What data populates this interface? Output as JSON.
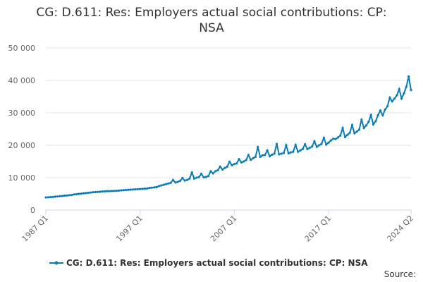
{
  "chart_data": {
    "type": "line",
    "title": "CG: D.611: Res: Employers actual social contributions: CP: NSA",
    "xlabel": "",
    "ylabel": "",
    "ylim": [
      0,
      50000
    ],
    "yticks": [
      0,
      10000,
      20000,
      30000,
      40000,
      50000
    ],
    "ytick_labels": [
      "0",
      "10 000",
      "20 000",
      "30 000",
      "40 000",
      "50 000"
    ],
    "x_range": [
      "1987 Q1",
      "2024 Q2"
    ],
    "xtick_labels": [
      "1987 Q1",
      "1997 Q1",
      "2007 Q1",
      "2017 Q1",
      "2024 Q2"
    ],
    "color": "#0b7cb5",
    "series": [
      {
        "name": "CG: D.611: Res: Employers actual social contributions: CP: NSA",
        "annual_base": [
          4000,
          4250,
          4550,
          4950,
          5300,
          5600,
          5800,
          5950,
          6200,
          6400,
          6600,
          7000,
          7700,
          8300,
          8900,
          9600,
          10100,
          10600,
          11500,
          12800,
          14000,
          15200,
          16200,
          16800,
          17300,
          17700,
          18000,
          18700,
          19500,
          20300,
          21300,
          22600,
          23800,
          25200,
          26800,
          30200,
          33800,
          36500
        ],
        "peak_years": [
          1998,
          1999,
          2000,
          2001,
          2002,
          2003,
          2004,
          2005,
          2006,
          2007,
          2008,
          2009,
          2010,
          2011,
          2012,
          2013,
          2014,
          2015,
          2016,
          2017,
          2018,
          2019,
          2020,
          2021,
          2022,
          2023
        ],
        "values_by_quarter": [
          3900,
          3950,
          4000,
          4050,
          4150,
          4200,
          4300,
          4350,
          4450,
          4500,
          4600,
          4650,
          4850,
          4900,
          5000,
          5050,
          5200,
          5250,
          5350,
          5400,
          5500,
          5550,
          5600,
          5650,
          5750,
          5800,
          5850,
          5850,
          5900,
          5900,
          5950,
          6000,
          6100,
          6150,
          6200,
          6250,
          6300,
          6350,
          6400,
          6450,
          6500,
          6550,
          6600,
          6650,
          6850,
          6900,
          7000,
          7100,
          7400,
          7600,
          7800,
          8000,
          8200,
          8400,
          9300,
          8500,
          8700,
          9000,
          9900,
          9100,
          9300,
          9700,
          11600,
          9700,
          10000,
          10200,
          11200,
          10100,
          10200,
          10500,
          12000,
          11300,
          12000,
          12300,
          13400,
          12500,
          13000,
          13400,
          14900,
          13800,
          14200,
          14400,
          15700,
          14700,
          15000,
          15400,
          17000,
          15500,
          16000,
          16400,
          19500,
          16400,
          16900,
          17000,
          18400,
          16600,
          17100,
          17400,
          20400,
          17200,
          17400,
          17600,
          20000,
          17500,
          17800,
          18000,
          20100,
          18000,
          18400,
          18800,
          20300,
          18800,
          19200,
          19600,
          21200,
          19500,
          20000,
          20400,
          22300,
          20200,
          20800,
          21500,
          22000,
          21900,
          22400,
          23000,
          25300,
          22500,
          23200,
          23800,
          26200,
          23700,
          24200,
          24800,
          27900,
          25300,
          26100,
          27200,
          29300,
          26400,
          27400,
          29300,
          30700,
          29200,
          31000,
          32000,
          34700,
          33500,
          34400,
          35400,
          37300,
          34400,
          36000,
          38000,
          41200,
          37000
        ]
      }
    ]
  },
  "legend": {
    "label": "CG: D.611: Res: Employers actual social contributions: CP: NSA"
  },
  "source_label": "Source:"
}
